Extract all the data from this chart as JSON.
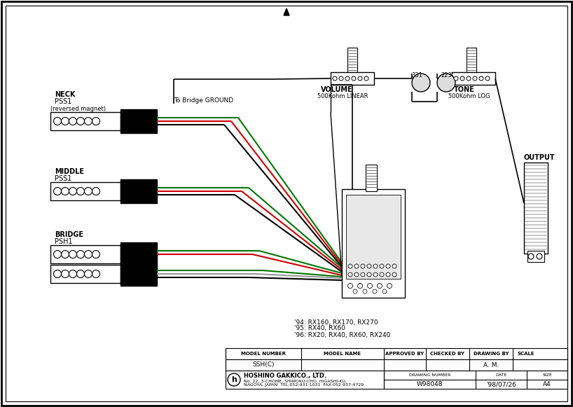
{
  "bg_color": "#ffffff",
  "line_color": "#000000",
  "red_wire": "#cc0000",
  "green_wire": "#007700",
  "gray_wire": "#999999",
  "neck_label1": "NECK",
  "neck_label2": "PSS1",
  "neck_label3": "(reversed magnet)",
  "middle_label1": "MIDDLE",
  "middle_label2": "PSS1",
  "bridge_label1": "BRIDGE",
  "bridge_label2": "PSH1",
  "volume_label1": "VOLUME",
  "volume_label2": "500Kohm LINEAR",
  "tone_label1": "TONE",
  "tone_label2": "500Kohm LOG",
  "ground_label": "To Bridge GROUND",
  "output_label": "OUTPUT",
  "cap_label1": "331",
  "cap_label2": "223",
  "model_notes": [
    "'94: RX160, RX170, RX270",
    "'95: RX40, RX60",
    "'96: RX20, RX40, RX60, RX240"
  ],
  "table_headers": [
    "MODEL NUMBER",
    "MODEL NAME",
    "APPROVED BY",
    "CHECKED BY",
    "DRAWING BY",
    "SCALE"
  ],
  "table_row1": [
    "SSH(C)",
    "",
    "",
    "",
    "A. M.",
    ""
  ],
  "company_name": "HOSHINO GAKKICO., LTD.",
  "company_addr1": "No. 22, 3-CHOME, SHIMOKU-CHO, HIGASHI-KU,",
  "company_addr2": "NAGOYA, JAPAN  TEL:052-931-1031  FAX:052-937-4729",
  "drawing_number": "W98048",
  "date": "'98/07/26",
  "size": "A4"
}
